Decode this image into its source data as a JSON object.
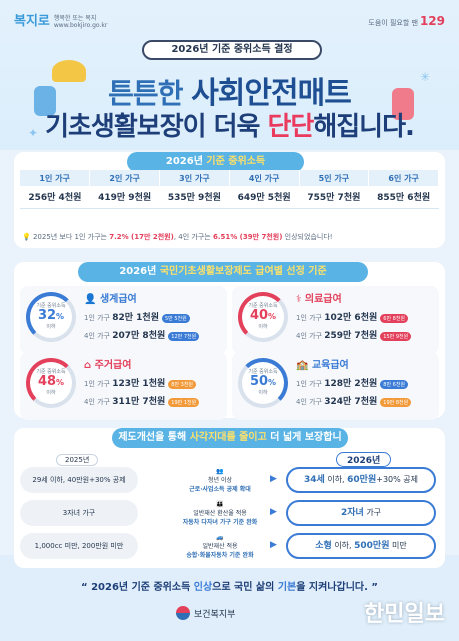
{
  "header": {
    "logo_left": "복지로",
    "logo_left_sub": "행복한 또는 복지",
    "logo_left_url": "www.bokjiro.go.kr",
    "logo_right_prefix": "도움이 필요할 땐",
    "logo_right": "129",
    "pill": "2026년 기준 중위소득 결정"
  },
  "hero": {
    "line1_a": "튼튼한 ",
    "line1_b": "사회안전매트",
    "line2_a": "기초생활보장",
    "line2_b": "이 더욱 ",
    "line2_c": "단단",
    "line2_d": "해집니다."
  },
  "income": {
    "head_a": "2026년 ",
    "head_b": "기준 중위소득",
    "columns": [
      "1인 가구",
      "2인 가구",
      "3인 가구",
      "4인 가구",
      "5인 가구",
      "6인 가구"
    ],
    "values": [
      "256만 4천원",
      "419만 9천원",
      "535만 9천원",
      "649만 5천원",
      "755만 7천원",
      "855만 6천원"
    ],
    "note_a": "2025년 보다 1인 가구는 ",
    "note_b": "7.2% (17만 2천원)",
    "note_c": ", 4인 가구는 ",
    "note_d": "6.51% (39만 7천원)",
    "note_e": " 인상되었습니다!"
  },
  "benefits": {
    "head_a": "2026년 ",
    "head_b": "국민기초생활보장제도 급여별 선정 기준",
    "cards": [
      {
        "name": "생계급여",
        "label": "기준 중위소득",
        "pct": "32",
        "unit": "%",
        "below": "이하",
        "r1_lbl": "1인 가구",
        "r1_val": "82만 1천원",
        "r1_tag": "5만 5천원",
        "r2_lbl": "4인 가구",
        "r2_val": "207만 8천원",
        "r2_tag": "12만 7천원",
        "color": "#3a7bd5"
      },
      {
        "name": "의료급여",
        "label": "기준 중위소득",
        "pct": "40",
        "unit": "%",
        "below": "이하",
        "r1_lbl": "1인 가구",
        "r1_val": "102만 6천원",
        "r1_tag": "6만 8천원",
        "r2_lbl": "4인 가구",
        "r2_val": "259만 7천원",
        "r2_tag": "15만 9천원",
        "color": "#e3405b"
      },
      {
        "name": "주거급여",
        "label": "기준 중위소득",
        "pct": "48",
        "unit": "%",
        "below": "이하",
        "r1_lbl": "1인 가구",
        "r1_val": "123만 1천원",
        "r1_tag": "8만 3천원",
        "r2_lbl": "4인 가구",
        "r2_val": "311만 7천원",
        "r2_tag": "19만 1천원",
        "color": "#e3405b"
      },
      {
        "name": "교육급여",
        "label": "기준 중위소득",
        "pct": "50",
        "unit": "%",
        "below": "이하",
        "r1_lbl": "1인 가구",
        "r1_val": "128만 2천원",
        "r1_tag": "8만 6천원",
        "r2_lbl": "4인 가구",
        "r2_val": "324만 7천원",
        "r2_tag": "19만 8천원",
        "color": "#3a7bd5"
      }
    ]
  },
  "improvements": {
    "head_a": "제도개선을 통해 ",
    "head_b": "사각지대를 줄이고",
    "head_c": " 더 넓게 보장합니다!",
    "old_year": "2025년",
    "new_year": "2026년",
    "rows": [
      {
        "old": "29세 이하, 40만원+30% 공제",
        "mid1": "청년 이상",
        "mid2": "근로·사업소득 공제 확대",
        "new_a": "34세",
        "new_b": " 이하, ",
        "new_c": "60만원",
        "new_d": "+30% 공제"
      },
      {
        "old": "3자녀 가구",
        "mid1": "일반재산 환산율 적용",
        "mid2": "자동차 다자녀 가구 기준 완화",
        "new_a": "2자녀",
        "new_b": " 가구",
        "new_c": "",
        "new_d": ""
      },
      {
        "old": "1,000cc 미만, 200만원 미만",
        "mid1": "일반재산 적용",
        "mid2": "승합·화물자동차 기준 완화",
        "new_a": "소형",
        "new_b": " 이하, ",
        "new_c": "500만원",
        "new_d": " 미만"
      }
    ]
  },
  "footer": {
    "line_a": "“ 2026년 기준 중위소득 ",
    "line_b": "인상",
    "line_c": "으로 국민 삶의 ",
    "line_d": "기본",
    "line_e": "을 지켜나갑니다. ”",
    "ministry": "보건복지부",
    "watermark": "한민일보"
  }
}
